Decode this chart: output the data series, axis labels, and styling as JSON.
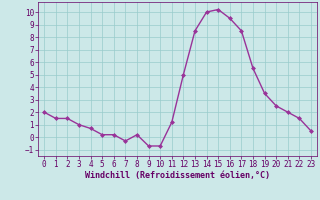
{
  "x": [
    0,
    1,
    2,
    3,
    4,
    5,
    6,
    7,
    8,
    9,
    10,
    11,
    12,
    13,
    14,
    15,
    16,
    17,
    18,
    19,
    20,
    21,
    22,
    23
  ],
  "y": [
    2,
    1.5,
    1.5,
    1,
    0.7,
    0.2,
    0.2,
    -0.3,
    0.2,
    -0.7,
    -0.7,
    1.2,
    5,
    8.5,
    10,
    10.2,
    9.5,
    8.5,
    5.5,
    3.5,
    2.5,
    2,
    1.5,
    0.5
  ],
  "line_color": "#993399",
  "marker": "D",
  "marker_size": 2.0,
  "bg_color": "#cce8e8",
  "grid_color": "#99cccc",
  "xlabel": "Windchill (Refroidissement éolien,°C)",
  "xlabel_color": "#660066",
  "tick_color": "#660066",
  "ylim": [
    -1.5,
    10.8
  ],
  "xlim": [
    -0.5,
    23.5
  ],
  "yticks": [
    -1,
    0,
    1,
    2,
    3,
    4,
    5,
    6,
    7,
    8,
    9,
    10
  ],
  "xticks": [
    0,
    1,
    2,
    3,
    4,
    5,
    6,
    7,
    8,
    9,
    10,
    11,
    12,
    13,
    14,
    15,
    16,
    17,
    18,
    19,
    20,
    21,
    22,
    23
  ],
  "spine_color": "#660066",
  "linewidth": 1.0,
  "font_family": "monospace",
  "tick_fontsize": 5.5,
  "xlabel_fontsize": 6.0
}
